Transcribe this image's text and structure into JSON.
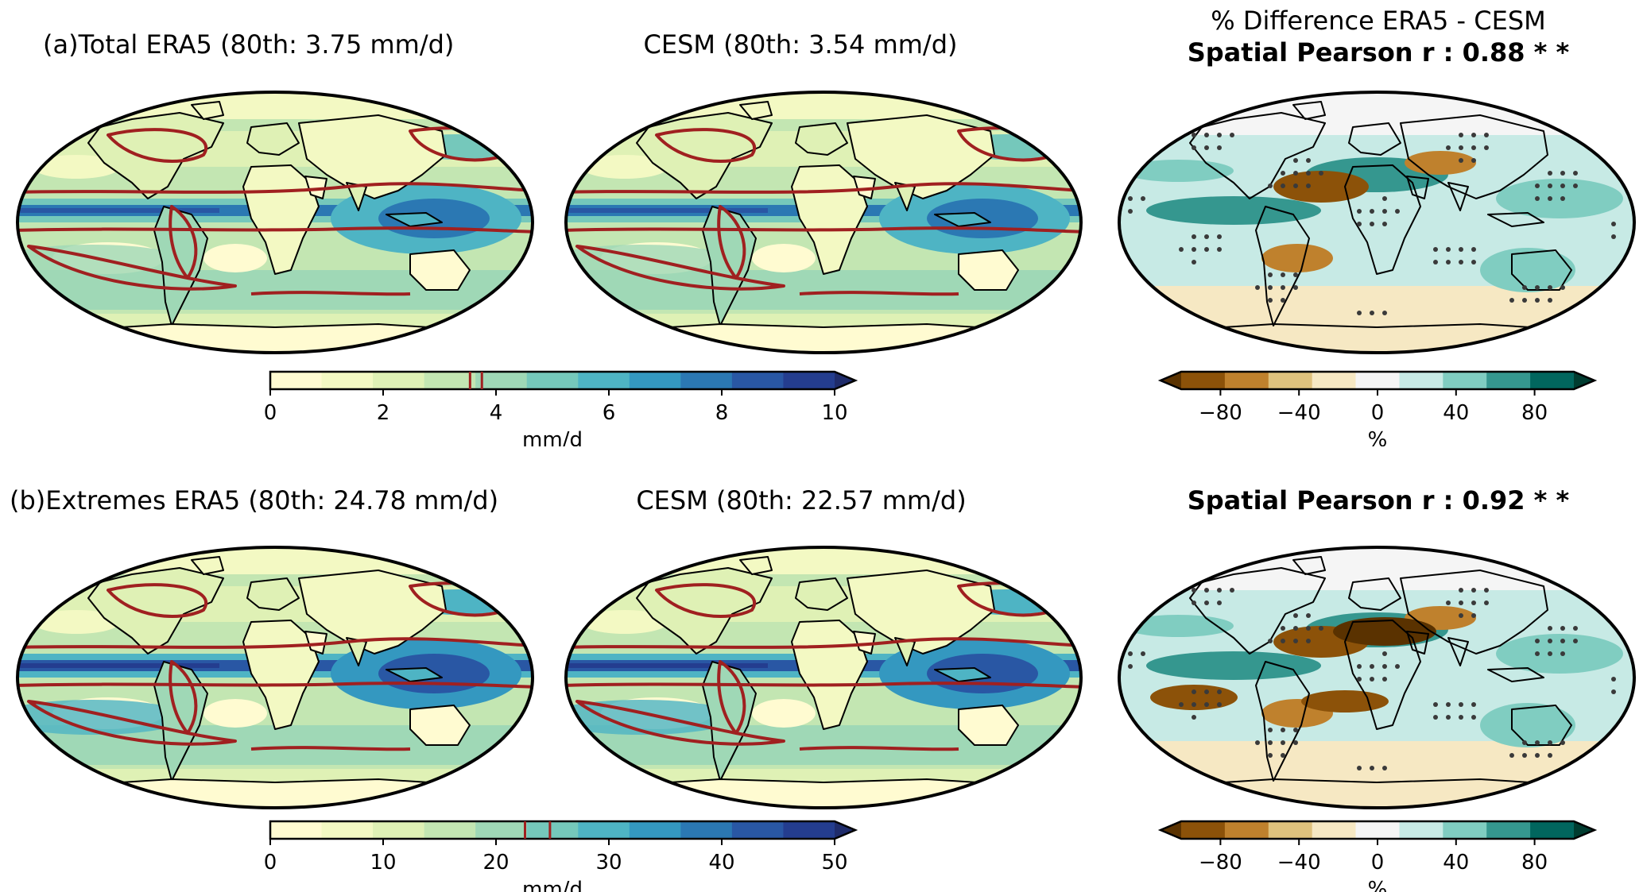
{
  "row_a": {
    "era5_title": "(a)Total ERA5 (80th: 3.75 mm/d)",
    "cesm_title": "CESM (80th: 3.54 mm/d)",
    "diff_title": "% Difference ERA5 - CESM",
    "pearson_title": "Spatial Pearson r : 0.88 * *",
    "colorbar": {
      "min": 0,
      "max": 10,
      "unit": "mm/d",
      "ticks": [
        "0",
        "2",
        "4",
        "6",
        "8",
        "10"
      ],
      "threshold_marks": [
        3.54,
        3.75
      ]
    }
  },
  "row_b": {
    "era5_title": "(b)Extremes ERA5 (80th: 24.78 mm/d)",
    "cesm_title": "CESM (80th: 22.57 mm/d)",
    "pearson_title": "Spatial Pearson r : 0.92 * *",
    "colorbar": {
      "min": 0,
      "max": 50,
      "unit": "mm/d",
      "ticks": [
        "0",
        "10",
        "20",
        "30",
        "40",
        "50"
      ],
      "threshold_marks": [
        22.57,
        24.78
      ]
    }
  },
  "diff_colorbar": {
    "min": -100,
    "max": 100,
    "unit": "%",
    "ticks": [
      "−80",
      "−40",
      "0",
      "40",
      "80"
    ],
    "tick_values": [
      -80,
      -40,
      0,
      40,
      80
    ]
  },
  "colors": {
    "precip_levels": [
      "#fffbd1",
      "#f3f9c3",
      "#dff1b5",
      "#c3e6b2",
      "#9fd8b6",
      "#75c8bb",
      "#4eb4c4",
      "#3498c0",
      "#2b78b3",
      "#2957a4",
      "#243d8f",
      "#1f2c6b"
    ],
    "diff_levels": [
      "#5a3200",
      "#8c5209",
      "#bf812d",
      "#dfc27d",
      "#f6e8c3",
      "#f5f5f5",
      "#c7eae5",
      "#80cdc1",
      "#35978f",
      "#01665e",
      "#003c30"
    ],
    "contour": "#a02020",
    "stipple": "#3a3a3a",
    "coast": "#000000"
  }
}
